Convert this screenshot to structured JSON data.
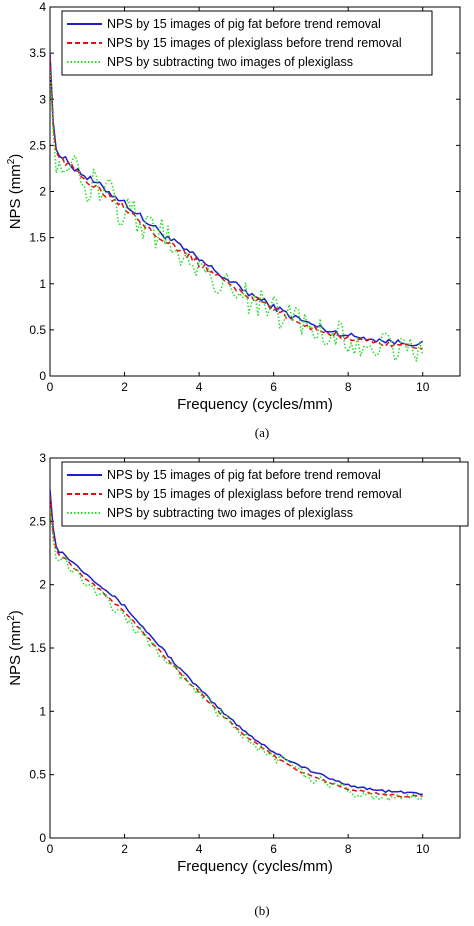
{
  "chart_data": [
    {
      "type": "line",
      "caption": "(a)",
      "xlabel": "Frequency (cycles/mm)",
      "ylabel": "NPS (mm",
      "ylabel_sup": "2",
      "ylabel_close": ")",
      "xlim": [
        0,
        11
      ],
      "ylim": [
        0,
        4
      ],
      "xticks": [
        "0",
        "2",
        "4",
        "6",
        "8",
        "10"
      ],
      "yticks": [
        "0",
        "0.5",
        "1",
        "1.5",
        "2",
        "2.5",
        "3",
        "3.5",
        "4"
      ],
      "legend_position": "top",
      "series": [
        {
          "name": "NPS by 15 images of pig fat before trend removal",
          "color": "#1f1fc8",
          "style": "solid",
          "noise": 0.04,
          "x": [
            0.0,
            0.05,
            0.1,
            0.2,
            0.35,
            0.6,
            1.0,
            1.5,
            2.0,
            2.5,
            3.0,
            3.5,
            4.0,
            4.5,
            5.0,
            5.5,
            6.0,
            6.5,
            7.0,
            7.5,
            8.0,
            8.5,
            9.0,
            9.5,
            10.0
          ],
          "y": [
            3.5,
            3.0,
            2.65,
            2.42,
            2.36,
            2.28,
            2.15,
            2.02,
            1.88,
            1.7,
            1.55,
            1.4,
            1.26,
            1.12,
            0.98,
            0.86,
            0.75,
            0.65,
            0.56,
            0.49,
            0.44,
            0.41,
            0.38,
            0.36,
            0.35
          ]
        },
        {
          "name": "NPS by 15 images of plexiglass  before trend removal",
          "color": "#e01010",
          "style": "dashed",
          "noise": 0.04,
          "x": [
            0.0,
            0.05,
            0.1,
            0.2,
            0.35,
            0.6,
            1.0,
            1.5,
            2.0,
            2.5,
            3.0,
            3.5,
            4.0,
            4.5,
            5.0,
            5.5,
            6.0,
            6.5,
            7.0,
            7.5,
            8.0,
            8.5,
            9.0,
            9.5,
            10.0
          ],
          "y": [
            3.45,
            2.95,
            2.6,
            2.4,
            2.33,
            2.25,
            2.12,
            1.98,
            1.84,
            1.66,
            1.5,
            1.36,
            1.22,
            1.08,
            0.95,
            0.83,
            0.72,
            0.62,
            0.53,
            0.46,
            0.41,
            0.38,
            0.35,
            0.33,
            0.32
          ]
        },
        {
          "name": "NPS by subtracting two images of plexiglass",
          "color": "#22dd22",
          "style": "dotted",
          "noise": 0.22,
          "x": [
            0.0,
            0.05,
            0.1,
            0.2,
            0.35,
            0.6,
            1.0,
            1.5,
            2.0,
            2.5,
            3.0,
            3.5,
            4.0,
            4.5,
            5.0,
            5.5,
            6.0,
            6.5,
            7.0,
            7.5,
            8.0,
            8.5,
            9.0,
            9.5,
            10.0
          ],
          "y": [
            3.3,
            2.9,
            2.55,
            2.35,
            2.3,
            2.2,
            2.1,
            1.95,
            1.8,
            1.65,
            1.5,
            1.35,
            1.2,
            1.05,
            0.92,
            0.8,
            0.7,
            0.6,
            0.52,
            0.45,
            0.4,
            0.36,
            0.33,
            0.31,
            0.3
          ]
        }
      ]
    },
    {
      "type": "line",
      "caption": "(b)",
      "xlabel": "Frequency (cycles/mm)",
      "ylabel": "NPS (mm",
      "ylabel_sup": "2",
      "ylabel_close": ")",
      "xlim": [
        0,
        11
      ],
      "ylim": [
        0,
        3
      ],
      "xticks": [
        "0",
        "2",
        "4",
        "6",
        "8",
        "10"
      ],
      "yticks": [
        "0",
        "0.5",
        "1",
        "1.5",
        "2",
        "2.5",
        "3"
      ],
      "legend_position": "top",
      "series": [
        {
          "name": "NPS by 15 images of pig fat before trend removal",
          "color": "#1f1fc8",
          "style": "solid",
          "noise": 0.012,
          "x": [
            0.0,
            0.05,
            0.1,
            0.2,
            0.35,
            0.6,
            1.0,
            1.5,
            2.0,
            2.5,
            3.0,
            3.5,
            4.0,
            4.5,
            5.0,
            5.5,
            6.0,
            6.5,
            7.0,
            7.5,
            8.0,
            8.5,
            9.0,
            9.5,
            10.0
          ],
          "y": [
            2.75,
            2.55,
            2.4,
            2.27,
            2.25,
            2.18,
            2.08,
            1.96,
            1.83,
            1.66,
            1.5,
            1.33,
            1.18,
            1.03,
            0.9,
            0.78,
            0.68,
            0.6,
            0.53,
            0.47,
            0.42,
            0.39,
            0.37,
            0.36,
            0.35
          ]
        },
        {
          "name": "NPS by 15 images of plexiglass before trend removal",
          "color": "#e01010",
          "style": "dashed",
          "noise": 0.012,
          "x": [
            0.0,
            0.05,
            0.1,
            0.2,
            0.35,
            0.6,
            1.0,
            1.5,
            2.0,
            2.5,
            3.0,
            3.5,
            4.0,
            4.5,
            5.0,
            5.5,
            6.0,
            6.5,
            7.0,
            7.5,
            8.0,
            8.5,
            9.0,
            9.5,
            10.0
          ],
          "y": [
            2.7,
            2.5,
            2.36,
            2.25,
            2.22,
            2.15,
            2.04,
            1.92,
            1.79,
            1.62,
            1.46,
            1.3,
            1.15,
            1.0,
            0.87,
            0.75,
            0.65,
            0.56,
            0.49,
            0.44,
            0.39,
            0.36,
            0.34,
            0.33,
            0.33
          ]
        },
        {
          "name": "NPS by subtracting two images of plexiglass",
          "color": "#22dd22",
          "style": "dotted",
          "noise": 0.05,
          "x": [
            0.0,
            0.05,
            0.1,
            0.2,
            0.35,
            0.6,
            1.0,
            1.5,
            2.0,
            2.5,
            3.0,
            3.5,
            4.0,
            4.5,
            5.0,
            5.5,
            6.0,
            6.5,
            7.0,
            7.5,
            8.0,
            8.5,
            9.0,
            9.5,
            10.0
          ],
          "y": [
            2.6,
            2.45,
            2.32,
            2.22,
            2.2,
            2.14,
            2.02,
            1.88,
            1.76,
            1.6,
            1.45,
            1.29,
            1.14,
            0.99,
            0.86,
            0.74,
            0.64,
            0.55,
            0.48,
            0.42,
            0.37,
            0.34,
            0.33,
            0.32,
            0.31
          ]
        }
      ]
    }
  ]
}
